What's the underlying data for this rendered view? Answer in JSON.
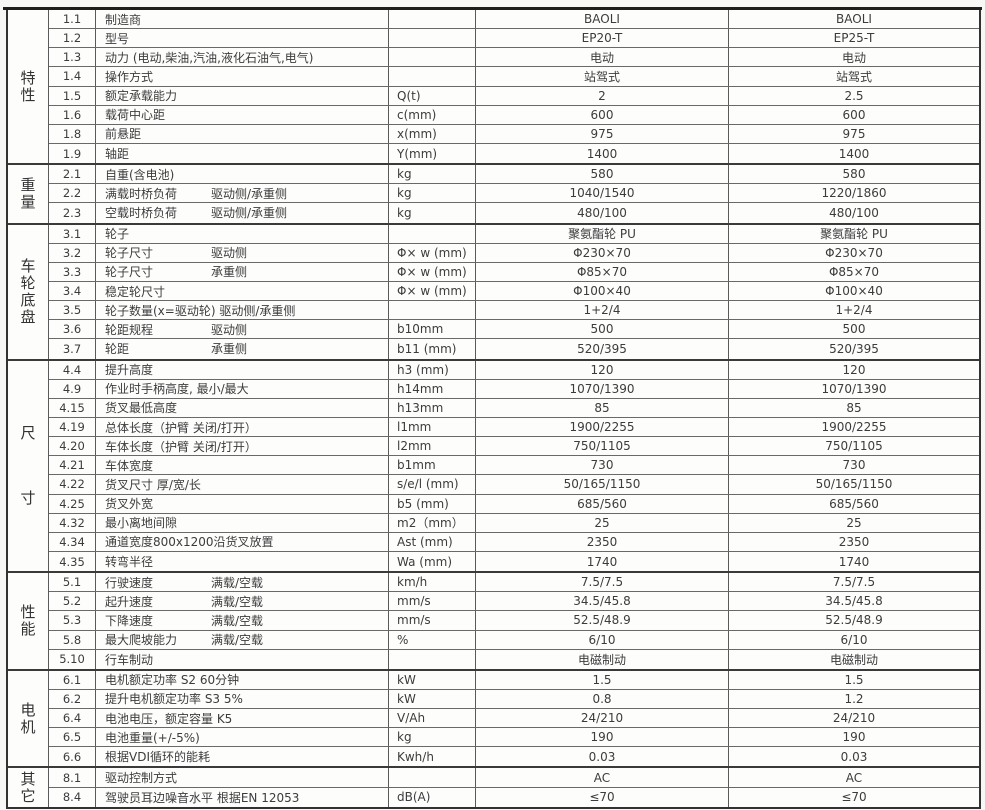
{
  "colors": {
    "border": "#3a3a3a",
    "text": "#3c3c3c",
    "background": "#fdfdfc"
  },
  "table": {
    "groups": [
      {
        "category": "特性",
        "rows": [
          {
            "id": "1.1",
            "desc": "制造商",
            "desc2": "",
            "unit": "",
            "v1": "BAOLI",
            "v2": "BAOLI"
          },
          {
            "id": "1.2",
            "desc": "型号",
            "desc2": "",
            "unit": "",
            "v1": "EP20-T",
            "v2": "EP25-T"
          },
          {
            "id": "1.3",
            "desc": "动力 (电动,柴油,汽油,液化石油气,电气)",
            "desc2": "",
            "unit": "",
            "v1": "电动",
            "v2": "电动"
          },
          {
            "id": "1.4",
            "desc": "操作方式",
            "desc2": "",
            "unit": "",
            "v1": "站驾式",
            "v2": "站驾式"
          },
          {
            "id": "1.5",
            "desc": "额定承载能力",
            "desc2": "",
            "unit": "Q(t)",
            "v1": "2",
            "v2": "2.5"
          },
          {
            "id": "1.6",
            "desc": "载荷中心距",
            "desc2": "",
            "unit": "c(mm)",
            "v1": "600",
            "v2": "600"
          },
          {
            "id": "1.8",
            "desc": "前悬距",
            "desc2": "",
            "unit": "x(mm)",
            "v1": "975",
            "v2": "975"
          },
          {
            "id": "1.9",
            "desc": "轴距",
            "desc2": "",
            "unit": "Y(mm)",
            "v1": "1400",
            "v2": "1400"
          }
        ]
      },
      {
        "category": "重量",
        "rows": [
          {
            "id": "2.1",
            "desc": "自重(含电池)",
            "desc2": "",
            "unit": "kg",
            "v1": "580",
            "v2": "580"
          },
          {
            "id": "2.2",
            "desc": "满载时桥负荷",
            "desc2": "驱动侧/承重侧",
            "unit": "kg",
            "v1": "1040/1540",
            "v2": "1220/1860"
          },
          {
            "id": "2.3",
            "desc": "空载时桥负荷",
            "desc2": "驱动侧/承重侧",
            "unit": "kg",
            "v1": "480/100",
            "v2": "480/100"
          }
        ]
      },
      {
        "category": "车轮底盘",
        "rows": [
          {
            "id": "3.1",
            "desc": "轮子",
            "desc2": "",
            "unit": "",
            "v1": "聚氨酯轮 PU",
            "v2": "聚氨酯轮 PU"
          },
          {
            "id": "3.2",
            "desc": "轮子尺寸",
            "desc2": "驱动侧",
            "unit": "Φ× w (mm)",
            "v1": "Φ230×70",
            "v2": "Φ230×70"
          },
          {
            "id": "3.3",
            "desc": "轮子尺寸",
            "desc2": "承重侧",
            "unit": "Φ× w (mm)",
            "v1": "Φ85×70",
            "v2": "Φ85×70"
          },
          {
            "id": "3.4",
            "desc": "稳定轮尺寸",
            "desc2": "",
            "unit": "Φ× w (mm)",
            "v1": "Φ100×40",
            "v2": "Φ100×40"
          },
          {
            "id": "3.5",
            "desc": "轮子数量(x=驱动轮)  驱动侧/承重侧",
            "desc2": "",
            "unit": "",
            "v1": "1+2/4",
            "v2": "1+2/4"
          },
          {
            "id": "3.6",
            "desc": "轮距规程",
            "desc2": "驱动侧",
            "unit": "b10mm",
            "v1": "500",
            "v2": "500"
          },
          {
            "id": "3.7",
            "desc": "轮距",
            "desc2": "承重侧",
            "unit": "b11 (mm)",
            "v1": "520/395",
            "v2": "520/395"
          }
        ]
      },
      {
        "category": "尺寸",
        "rows": [
          {
            "id": "4.4",
            "desc": "提升高度",
            "desc2": "",
            "unit": "h3 (mm)",
            "v1": "120",
            "v2": "120"
          },
          {
            "id": "4.9",
            "desc": "作业时手柄高度, 最小/最大",
            "desc2": "",
            "unit": "h14mm",
            "v1": "1070/1390",
            "v2": "1070/1390"
          },
          {
            "id": "4.15",
            "desc": "货叉最低高度",
            "desc2": "",
            "unit": "h13mm",
            "v1": "85",
            "v2": "85"
          },
          {
            "id": "4.19",
            "desc": "总体长度（护臂 关闭/打开）",
            "desc2": "",
            "unit": "l1mm",
            "v1": "1900/2255",
            "v2": "1900/2255"
          },
          {
            "id": "4.20",
            "desc": "车体长度（护臂 关闭/打开）",
            "desc2": "",
            "unit": "l2mm",
            "v1": "750/1105",
            "v2": "750/1105"
          },
          {
            "id": "4.21",
            "desc": "车体宽度",
            "desc2": "",
            "unit": "b1mm",
            "v1": "730",
            "v2": "730"
          },
          {
            "id": "4.22",
            "desc": "货叉尺寸 厚/宽/长",
            "desc2": "",
            "unit": "s/e/l (mm)",
            "v1": "50/165/1150",
            "v2": "50/165/1150"
          },
          {
            "id": "4.25",
            "desc": "货叉外宽",
            "desc2": "",
            "unit": "b5 (mm)",
            "v1": "685/560",
            "v2": "685/560"
          },
          {
            "id": "4.32",
            "desc": "最小离地间隙",
            "desc2": "",
            "unit": "m2（mm）",
            "v1": "25",
            "v2": "25"
          },
          {
            "id": "4.34",
            "desc": "通道宽度800x1200沿货叉放置",
            "desc2": "",
            "unit": "Ast (mm)",
            "v1": "2350",
            "v2": "2350"
          },
          {
            "id": "4.35",
            "desc": "转弯半径",
            "desc2": "",
            "unit": "Wa (mm)",
            "v1": "1740",
            "v2": "1740"
          }
        ]
      },
      {
        "category": "性能",
        "rows": [
          {
            "id": "5.1",
            "desc": "行驶速度",
            "desc2": "满载/空载",
            "unit": "km/h",
            "v1": "7.5/7.5",
            "v2": "7.5/7.5"
          },
          {
            "id": "5.2",
            "desc": "起升速度",
            "desc2": "满载/空载",
            "unit": "mm/s",
            "v1": "34.5/45.8",
            "v2": "34.5/45.8"
          },
          {
            "id": "5.3",
            "desc": "下降速度",
            "desc2": "满载/空载",
            "unit": "mm/s",
            "v1": "52.5/48.9",
            "v2": "52.5/48.9"
          },
          {
            "id": "5.8",
            "desc": "最大爬坡能力",
            "desc2": "满载/空载",
            "unit": "%",
            "v1": "6/10",
            "v2": "6/10"
          },
          {
            "id": "5.10",
            "desc": "行车制动",
            "desc2": "",
            "unit": "",
            "v1": "电磁制动",
            "v2": "电磁制动"
          }
        ]
      },
      {
        "category": "电机",
        "rows": [
          {
            "id": "6.1",
            "desc": "电机额定功率 S2  60分钟",
            "desc2": "",
            "unit": "kW",
            "v1": "1.5",
            "v2": "1.5"
          },
          {
            "id": "6.2",
            "desc": "提升电机额定功率 S3  5%",
            "desc2": "",
            "unit": "kW",
            "v1": "0.8",
            "v2": "1.2"
          },
          {
            "id": "6.4",
            "desc": "电池电压，额定容量 K5",
            "desc2": "",
            "unit": "V/Ah",
            "v1": "24/210",
            "v2": "24/210"
          },
          {
            "id": "6.5",
            "desc": "电池重量(+/-5%)",
            "desc2": "",
            "unit": "kg",
            "v1": "190",
            "v2": "190"
          },
          {
            "id": "6.6",
            "desc": "根据VDI循环的能耗",
            "desc2": "",
            "unit": "Kwh/h",
            "v1": "0.03",
            "v2": "0.03"
          }
        ]
      },
      {
        "category": "其它",
        "rows": [
          {
            "id": "8.1",
            "desc": "驱动控制方式",
            "desc2": "",
            "unit": "",
            "v1": "AC",
            "v2": "AC"
          },
          {
            "id": "8.4",
            "desc": "驾驶员耳边噪音水平 根据EN 12053",
            "desc2": "",
            "unit": "dB(A)",
            "v1": "≤70",
            "v2": "≤70"
          }
        ]
      }
    ]
  }
}
